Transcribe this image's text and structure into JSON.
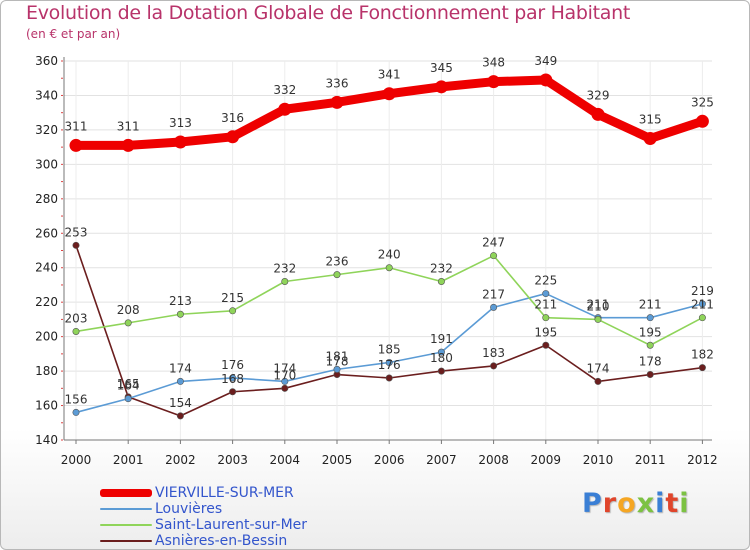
{
  "header": {
    "title": "Evolution de la Dotation Globale de Fonctionnement par Habitant",
    "subtitle": "(en € et par an)"
  },
  "logo": {
    "text": "Proxiti",
    "letter_colors": [
      "#3a7fd5",
      "#e0452b",
      "#f5a623",
      "#7cc242",
      "#3a7fd5",
      "#e0452b",
      "#7cc242"
    ]
  },
  "chart_data": {
    "type": "line",
    "x": [
      "2000",
      "2001",
      "2002",
      "2003",
      "2004",
      "2005",
      "2006",
      "2007",
      "2008",
      "2009",
      "2010",
      "2011",
      "2012"
    ],
    "ylim": [
      140,
      360
    ],
    "yticks": [
      140,
      160,
      180,
      200,
      220,
      240,
      260,
      280,
      300,
      320,
      340,
      360
    ],
    "grid": true,
    "legend_position": "bottom-left",
    "series": [
      {
        "name": "VIERVILLE-SUR-MER",
        "color": "#ee0000",
        "width": 9,
        "marker": 6.5,
        "values": [
          311,
          311,
          313,
          316,
          332,
          336,
          341,
          345,
          348,
          349,
          329,
          315,
          325
        ]
      },
      {
        "name": "Louvières",
        "color": "#5b9bd5",
        "width": 1.6,
        "marker": 3.2,
        "values": [
          156,
          164,
          174,
          176,
          174,
          181,
          185,
          191,
          217,
          225,
          211,
          211,
          219
        ]
      },
      {
        "name": "Saint-Laurent-sur-Mer",
        "color": "#8fd45a",
        "width": 1.6,
        "marker": 3.2,
        "values": [
          203,
          208,
          213,
          215,
          232,
          236,
          240,
          232,
          247,
          211,
          210,
          195,
          211
        ]
      },
      {
        "name": "Asnières-en-Bessin",
        "color": "#6b1e1e",
        "width": 1.6,
        "marker": 3.2,
        "values": [
          253,
          165,
          154,
          168,
          170,
          178,
          176,
          180,
          183,
          195,
          174,
          178,
          182
        ]
      }
    ]
  }
}
